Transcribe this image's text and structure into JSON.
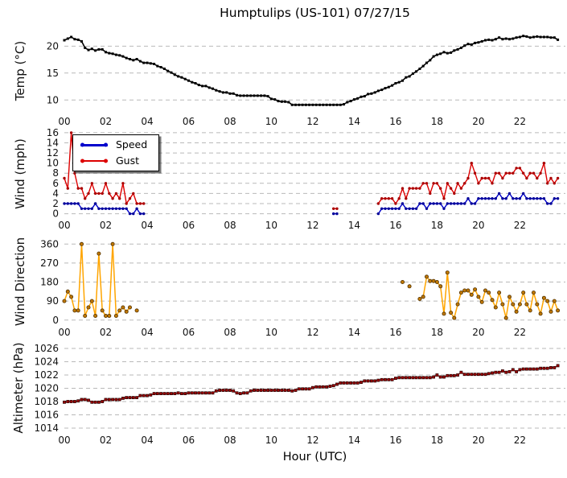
{
  "chart_data": {
    "title": "Humptulips (US-101) 07/27/15",
    "station": "Humptulips (US-101)",
    "date": "07/27/15",
    "x_axis": {
      "label": "Hour (UTC)",
      "xlim": [
        0,
        24.2
      ],
      "ticks": [
        0,
        2,
        4,
        6,
        8,
        10,
        12,
        14,
        16,
        18,
        20,
        22
      ],
      "labels": [
        "00",
        "02",
        "04",
        "06",
        "08",
        "10",
        "12",
        "14",
        "16",
        "18",
        "20",
        "22"
      ],
      "start_hour": 0,
      "step_minutes": 10
    },
    "grid_color": "#b9b9b9",
    "charts": [
      {
        "id": "temp",
        "type": "line",
        "ylabel": "Temp (°C)",
        "ylim": [
          7.5,
          23.2
        ],
        "yticks": [
          10,
          15,
          20
        ],
        "series": [
          {
            "id": "temp",
            "name": "Temp",
            "color": "#000000",
            "marker": "square",
            "marker_color": "#000000",
            "marker_edge": "none",
            "values": [
              21.1,
              21.4,
              21.7,
              21.3,
              21.2,
              20.9,
              19.7,
              19.3,
              19.5,
              19.2,
              19.4,
              19.4,
              18.9,
              18.7,
              18.6,
              18.4,
              18.3,
              18.1,
              17.8,
              17.6,
              17.4,
              17.6,
              17.2,
              16.9,
              16.9,
              16.8,
              16.7,
              16.3,
              16.1,
              15.8,
              15.4,
              15.1,
              14.7,
              14.4,
              14.2,
              13.9,
              13.6,
              13.3,
              13.1,
              12.8,
              12.6,
              12.6,
              12.3,
              12.1,
              11.8,
              11.6,
              11.4,
              11.4,
              11.2,
              11.2,
              10.9,
              10.8,
              10.8,
              10.8,
              10.8,
              10.8,
              10.8,
              10.8,
              10.8,
              10.7,
              10.2,
              10.1,
              9.8,
              9.7,
              9.7,
              9.6,
              9.1,
              9.1,
              9.1,
              9.1,
              9.1,
              9.1,
              9.1,
              9.1,
              9.1,
              9.1,
              9.1,
              9.1,
              9.1,
              9.1,
              9.1,
              9.2,
              9.6,
              9.8,
              10.1,
              10.3,
              10.6,
              10.7,
              11.1,
              11.2,
              11.4,
              11.7,
              11.9,
              12.2,
              12.4,
              12.7,
              13.1,
              13.3,
              13.6,
              14.2,
              14.4,
              14.9,
              15.3,
              15.8,
              16.3,
              16.9,
              17.4,
              18.1,
              18.4,
              18.6,
              18.9,
              18.7,
              18.8,
              19.2,
              19.4,
              19.7,
              20.1,
              20.4,
              20.3,
              20.6,
              20.7,
              20.9,
              21.1,
              21.2,
              21.1,
              21.3,
              21.6,
              21.3,
              21.4,
              21.3,
              21.4,
              21.6,
              21.7,
              21.9,
              21.8,
              21.6,
              21.7,
              21.8,
              21.7,
              21.7,
              21.7,
              21.6,
              21.6,
              21.2
            ]
          }
        ]
      },
      {
        "id": "wind",
        "type": "line",
        "ylabel": "Wind (mph)",
        "ylim": [
          -0.7,
          16.3
        ],
        "yticks": [
          0,
          2,
          4,
          6,
          8,
          10,
          12,
          14,
          16
        ],
        "legend_position": "upper left",
        "series": [
          {
            "id": "wind-speed",
            "name": "Speed",
            "color": "#0000cc",
            "marker": "circle",
            "marker_color": "#000099",
            "marker_edge": "none",
            "values": [
              2,
              2,
              2,
              2,
              2,
              1,
              1,
              1,
              1,
              2,
              1,
              1,
              1,
              1,
              1,
              1,
              1,
              1,
              1,
              0,
              0,
              1,
              0,
              0,
              null,
              null,
              null,
              null,
              null,
              null,
              null,
              null,
              null,
              null,
              null,
              null,
              null,
              null,
              null,
              null,
              null,
              null,
              null,
              null,
              null,
              null,
              null,
              null,
              null,
              null,
              null,
              null,
              null,
              null,
              null,
              null,
              null,
              null,
              null,
              null,
              null,
              null,
              null,
              null,
              null,
              null,
              null,
              null,
              null,
              null,
              null,
              null,
              null,
              null,
              null,
              null,
              null,
              null,
              0,
              0,
              null,
              null,
              null,
              null,
              null,
              null,
              null,
              null,
              null,
              null,
              null,
              0,
              1,
              1,
              1,
              1,
              1,
              1,
              2,
              1,
              1,
              1,
              1,
              2,
              2,
              1,
              2,
              2,
              2,
              2,
              1,
              2,
              2,
              2,
              2,
              2,
              2,
              3,
              2,
              2,
              3,
              3,
              3,
              3,
              3,
              3,
              4,
              3,
              3,
              4,
              3,
              3,
              3,
              4,
              3,
              3,
              3,
              3,
              3,
              3,
              2,
              2,
              3,
              3
            ]
          },
          {
            "id": "wind-gust",
            "name": "Gust",
            "color": "#dd0000",
            "marker": "circle",
            "marker_color": "#aa0000",
            "marker_edge": "none",
            "values": [
              7,
              5,
              16,
              8,
              5,
              5,
              3,
              4,
              6,
              4,
              4,
              4,
              6,
              4,
              3,
              4,
              3,
              6,
              2,
              3,
              4,
              2,
              2,
              2,
              null,
              null,
              null,
              null,
              null,
              null,
              null,
              null,
              null,
              null,
              null,
              null,
              null,
              null,
              null,
              null,
              null,
              null,
              null,
              null,
              null,
              null,
              null,
              null,
              null,
              null,
              null,
              null,
              null,
              null,
              null,
              null,
              null,
              null,
              null,
              null,
              null,
              null,
              null,
              null,
              null,
              null,
              null,
              null,
              null,
              null,
              null,
              null,
              null,
              null,
              null,
              null,
              null,
              null,
              1,
              1,
              null,
              null,
              null,
              null,
              null,
              null,
              null,
              null,
              null,
              null,
              null,
              2,
              3,
              3,
              3,
              3,
              2,
              3,
              5,
              3,
              5,
              5,
              5,
              5,
              6,
              6,
              4,
              6,
              6,
              5,
              3,
              6,
              5,
              4,
              6,
              5,
              6,
              7,
              10,
              8,
              6,
              7,
              7,
              7,
              6,
              8,
              8,
              7,
              8,
              8,
              8,
              9,
              9,
              8,
              7,
              8,
              8,
              7,
              8,
              10,
              6,
              7,
              6,
              7
            ]
          }
        ]
      },
      {
        "id": "dir",
        "type": "line",
        "ylabel": "Wind Direction",
        "ylim": [
          -20,
          380
        ],
        "yticks": [
          0,
          90,
          180,
          270,
          360
        ],
        "series": [
          {
            "id": "wind-direction",
            "name": "Wind Direction",
            "color": "#ffa500",
            "marker": "circle",
            "marker_color": "#c07800",
            "marker_edge": "#503000",
            "values": [
              90,
              135,
              110,
              45,
              45,
              360,
              20,
              60,
              90,
              20,
              315,
              45,
              20,
              20,
              360,
              20,
              45,
              60,
              40,
              60,
              null,
              45,
              null,
              null,
              null,
              null,
              null,
              null,
              null,
              null,
              null,
              null,
              null,
              null,
              null,
              null,
              null,
              null,
              null,
              null,
              null,
              null,
              null,
              null,
              null,
              null,
              null,
              null,
              null,
              null,
              null,
              null,
              null,
              null,
              null,
              null,
              null,
              null,
              null,
              null,
              null,
              null,
              null,
              null,
              null,
              null,
              null,
              null,
              null,
              null,
              null,
              null,
              null,
              null,
              null,
              null,
              null,
              null,
              null,
              null,
              null,
              null,
              null,
              null,
              null,
              null,
              null,
              null,
              null,
              null,
              null,
              null,
              null,
              null,
              null,
              null,
              null,
              null,
              180,
              null,
              160,
              null,
              null,
              100,
              110,
              205,
              185,
              185,
              180,
              160,
              30,
              225,
              35,
              10,
              75,
              130,
              140,
              140,
              120,
              145,
              110,
              85,
              140,
              130,
              95,
              60,
              130,
              75,
              10,
              110,
              75,
              40,
              75,
              130,
              75,
              45,
              130,
              75,
              30,
              105,
              90,
              40,
              90,
              45
            ]
          }
        ]
      },
      {
        "id": "alt",
        "type": "line",
        "ylabel": "Altimeter (hPa)",
        "ylim": [
          1013.4,
          1026.6
        ],
        "yticks": [
          1014,
          1016,
          1018,
          1020,
          1022,
          1024,
          1026
        ],
        "series": [
          {
            "id": "altimeter",
            "name": "Altimeter",
            "color": "#b22222",
            "marker": "square",
            "marker_color": "#990000",
            "marker_edge": "#1a0000",
            "values": [
              1017.9,
              1018.0,
              1018.0,
              1018.0,
              1018.1,
              1018.3,
              1018.3,
              1018.2,
              1017.9,
              1017.9,
              1017.9,
              1018.0,
              1018.3,
              1018.3,
              1018.3,
              1018.3,
              1018.3,
              1018.5,
              1018.6,
              1018.6,
              1018.6,
              1018.6,
              1018.9,
              1018.9,
              1018.9,
              1019.0,
              1019.2,
              1019.2,
              1019.2,
              1019.2,
              1019.2,
              1019.2,
              1019.2,
              1019.3,
              1019.2,
              1019.2,
              1019.3,
              1019.3,
              1019.3,
              1019.3,
              1019.3,
              1019.3,
              1019.3,
              1019.3,
              1019.6,
              1019.7,
              1019.7,
              1019.7,
              1019.7,
              1019.6,
              1019.3,
              1019.2,
              1019.3,
              1019.3,
              1019.6,
              1019.7,
              1019.7,
              1019.7,
              1019.7,
              1019.7,
              1019.7,
              1019.7,
              1019.7,
              1019.7,
              1019.7,
              1019.7,
              1019.6,
              1019.7,
              1019.9,
              1019.9,
              1019.9,
              1019.9,
              1020.1,
              1020.2,
              1020.2,
              1020.2,
              1020.2,
              1020.3,
              1020.4,
              1020.6,
              1020.8,
              1020.8,
              1020.8,
              1020.8,
              1020.8,
              1020.8,
              1020.9,
              1021.1,
              1021.1,
              1021.1,
              1021.1,
              1021.2,
              1021.3,
              1021.3,
              1021.3,
              1021.3,
              1021.5,
              1021.6,
              1021.6,
              1021.6,
              1021.6,
              1021.6,
              1021.6,
              1021.6,
              1021.6,
              1021.6,
              1021.6,
              1021.7,
              1022.0,
              1021.7,
              1021.7,
              1021.9,
              1021.9,
              1021.9,
              1022.0,
              1022.4,
              1022.1,
              1022.1,
              1022.1,
              1022.1,
              1022.1,
              1022.1,
              1022.1,
              1022.2,
              1022.3,
              1022.4,
              1022.4,
              1022.6,
              1022.4,
              1022.5,
              1022.8,
              1022.5,
              1022.8,
              1022.9,
              1022.9,
              1022.9,
              1022.9,
              1022.9,
              1023.0,
              1023.0,
              1023.0,
              1023.1,
              1023.1,
              1023.4
            ]
          }
        ]
      }
    ]
  }
}
